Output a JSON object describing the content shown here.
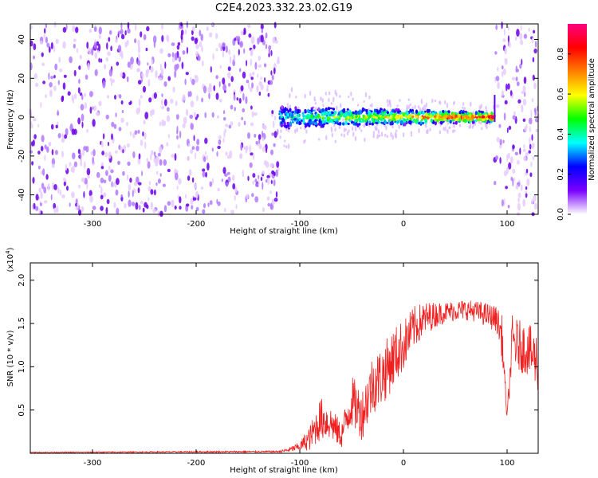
{
  "title": "C2E4.2023.332.23.02.G19",
  "chart_data": [
    {
      "type": "heatmap",
      "xlabel": "Height of straight line (km)",
      "ylabel": "Frequency (Hz)",
      "xlim": [
        -360,
        130
      ],
      "ylim": [
        -50,
        48
      ],
      "xticks": [
        -300,
        -200,
        -100,
        0,
        100
      ],
      "xtick_labels": [
        "-300",
        "-200",
        "-100",
        "0",
        "100"
      ],
      "yticks": [
        -40,
        -20,
        0,
        20,
        40
      ],
      "ytick_labels": [
        "-40",
        "-20",
        "0",
        "20",
        "40"
      ],
      "colorbar": {
        "label": "Normalized spectral amplitude",
        "range": [
          0,
          0.95
        ],
        "ticks": [
          0.0,
          0.2,
          0.4,
          0.6,
          0.8
        ],
        "tick_labels": [
          "0.0",
          "0.2",
          "0.4",
          "0.6",
          "0.8"
        ],
        "colors": [
          "#ffffff",
          "#7a00ff",
          "#0000ff",
          "#00ffff",
          "#00ff00",
          "#ffff00",
          "#ff8000",
          "#ff0000",
          "#ff0080"
        ]
      },
      "regions": [
        {
          "x_range": [
            -360,
            -120
          ],
          "description": "broadband noise",
          "amplitude": 0.15
        },
        {
          "x_range": [
            -120,
            88
          ],
          "center_freq_hz": 0,
          "peak_amplitude": 0.95
        },
        {
          "x_range": [
            88,
            130
          ],
          "description": "broadband noise",
          "amplitude": 0.15
        }
      ],
      "grid": false
    },
    {
      "type": "line",
      "xlabel": "Height of straight line (km)",
      "ylabel": "SNR (10 * v/v)",
      "exponent_label": "(x10",
      "exponent_power": "4",
      "exponent_close": ")",
      "xlim": [
        -360,
        130
      ],
      "ylim": [
        0,
        2.2
      ],
      "xticks": [
        -300,
        -200,
        -100,
        0,
        100
      ],
      "xtick_labels": [
        "-300",
        "-200",
        "-100",
        "0",
        "100"
      ],
      "yticks": [
        0.5,
        1.0,
        1.5,
        2.0
      ],
      "ytick_labels": [
        "0.5",
        "1.0",
        "1.5",
        "2.0"
      ],
      "color": "#ff0000",
      "x": [
        -360,
        -120,
        -110,
        -100,
        -90,
        -80,
        -70,
        -60,
        -50,
        -40,
        -30,
        -20,
        -10,
        0,
        10,
        20,
        30,
        40,
        50,
        60,
        70,
        80,
        90,
        95,
        100,
        105,
        110,
        120,
        130
      ],
      "y": [
        0.01,
        0.02,
        0.04,
        0.08,
        0.18,
        0.4,
        0.35,
        0.2,
        0.6,
        0.45,
        0.8,
        0.9,
        1.1,
        1.25,
        1.45,
        1.55,
        1.6,
        1.63,
        1.65,
        1.66,
        1.64,
        1.6,
        1.55,
        1.35,
        0.4,
        1.3,
        1.25,
        1.2,
        1.05
      ],
      "spread": [
        0.005,
        0.01,
        0.03,
        0.05,
        0.15,
        0.25,
        0.2,
        0.15,
        0.3,
        0.3,
        0.35,
        0.35,
        0.35,
        0.3,
        0.25,
        0.2,
        0.15,
        0.12,
        0.12,
        0.12,
        0.12,
        0.14,
        0.15,
        0.25,
        0.05,
        0.3,
        0.3,
        0.3,
        0.35
      ],
      "grid": false
    }
  ]
}
